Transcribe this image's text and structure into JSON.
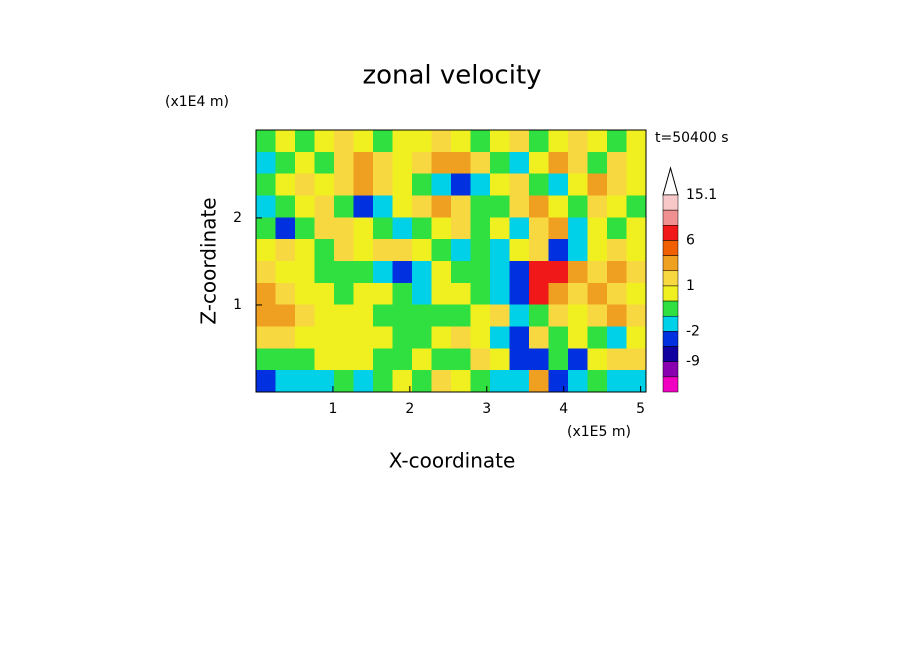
{
  "chart_data": {
    "type": "contour",
    "title": "zonal velocity",
    "y_unit": "(x1E4 m)",
    "x_unit": "(x1E5 m)",
    "time_label": "t=50400 s",
    "x_label": "X-coordinate",
    "y_label": "Z-coordinate",
    "xlim": [
      0,
      5.07
    ],
    "ylim": [
      0,
      3.01
    ],
    "xticks": [
      1,
      2,
      3,
      4,
      5
    ],
    "yticks": [
      1,
      2
    ],
    "z": [
      [
        -0.5,
        0.5,
        -0.5,
        0.5,
        1.5,
        0.5,
        -0.5,
        0.5,
        0.5,
        1.5,
        0.5,
        -0.5,
        0.5,
        1.5,
        -0.5,
        0.5,
        1.5,
        0.5,
        -0.5,
        0.5
      ],
      [
        -1.5,
        -0.5,
        0.5,
        -0.5,
        1.5,
        3,
        1.5,
        0.5,
        1.5,
        3,
        3,
        1.5,
        -0.5,
        -1.5,
        0.5,
        3,
        1.5,
        -0.5,
        1.5,
        0.5
      ],
      [
        -0.5,
        0.5,
        1.5,
        0.5,
        1.5,
        3,
        1.5,
        0.5,
        -0.5,
        -1.5,
        -3,
        -1.5,
        0.5,
        1.5,
        -0.5,
        -1.5,
        0.5,
        3,
        1.5,
        0.5
      ],
      [
        -1.5,
        -0.5,
        0.5,
        1.5,
        -0.5,
        -3,
        -1.5,
        0.5,
        1.5,
        3,
        1.5,
        -0.5,
        -0.5,
        1.5,
        3,
        0.5,
        -0.5,
        1.5,
        0.5,
        -0.5
      ],
      [
        -0.5,
        -3,
        -0.5,
        1.5,
        1.5,
        0.5,
        -0.5,
        -1.5,
        -0.5,
        0.5,
        1.5,
        -0.5,
        0.5,
        -1.5,
        1.5,
        3,
        -1.5,
        0.5,
        -0.5,
        0.5
      ],
      [
        0.5,
        1.5,
        0.5,
        -0.5,
        1.5,
        0.5,
        1.5,
        1.5,
        0.5,
        -0.5,
        -1.5,
        -0.5,
        -1.5,
        0.5,
        1.5,
        -3,
        -1.5,
        0.5,
        1.5,
        0.5
      ],
      [
        1.5,
        0.5,
        0.5,
        -0.5,
        -0.5,
        -0.5,
        -1.5,
        -3,
        -1.5,
        0.5,
        -0.5,
        -0.5,
        -1.5,
        -5,
        7,
        7,
        3,
        1.5,
        3,
        1.5
      ],
      [
        3,
        1.5,
        0.5,
        0.5,
        -0.5,
        0.5,
        0.5,
        -0.5,
        -1.5,
        0.5,
        0.5,
        -0.5,
        -1.5,
        -5,
        7,
        3,
        1.5,
        3,
        1.5,
        0.5
      ],
      [
        3,
        3,
        1.5,
        0.5,
        0.5,
        0.5,
        -0.5,
        -0.5,
        -0.5,
        -0.5,
        -0.5,
        0.5,
        1.5,
        -1.5,
        -0.5,
        1.5,
        0.5,
        1.5,
        3,
        1.5
      ],
      [
        1.5,
        1.5,
        0.5,
        0.5,
        0.5,
        0.5,
        0.5,
        -0.5,
        -0.5,
        0.5,
        1.5,
        0.5,
        -1.5,
        -3,
        1.5,
        -0.5,
        0.5,
        -0.5,
        -1.5,
        0.5
      ],
      [
        -0.5,
        -0.5,
        -0.5,
        0.5,
        0.5,
        0.5,
        -0.5,
        -0.5,
        0.5,
        -0.5,
        -0.5,
        1.5,
        0.5,
        -3,
        -3,
        -0.5,
        -3,
        0.5,
        1.5,
        1.5
      ],
      [
        -3,
        -1.5,
        -1.5,
        -1.5,
        -0.5,
        -1.5,
        -0.5,
        0.5,
        -0.5,
        1.5,
        0.5,
        -0.5,
        -1.5,
        -1.5,
        3,
        -5,
        -1.5,
        -0.5,
        -1.5,
        -1.5
      ]
    ],
    "colorbar": {
      "levels": [
        15.1,
        12,
        9,
        6,
        4,
        2,
        1,
        0,
        -1,
        -2,
        -5,
        -9,
        -12
      ],
      "colors": [
        "#ffffff",
        "#f8c8c8",
        "#f09090",
        "#f01818",
        "#f06000",
        "#f0a020",
        "#f8d840",
        "#f0f020",
        "#30e040",
        "#00d0e8",
        "#0030e0",
        "#1000a0",
        "#8800b0",
        "#f000c0"
      ],
      "ticks": [
        15.1,
        6,
        1,
        -2,
        -9
      ]
    }
  }
}
